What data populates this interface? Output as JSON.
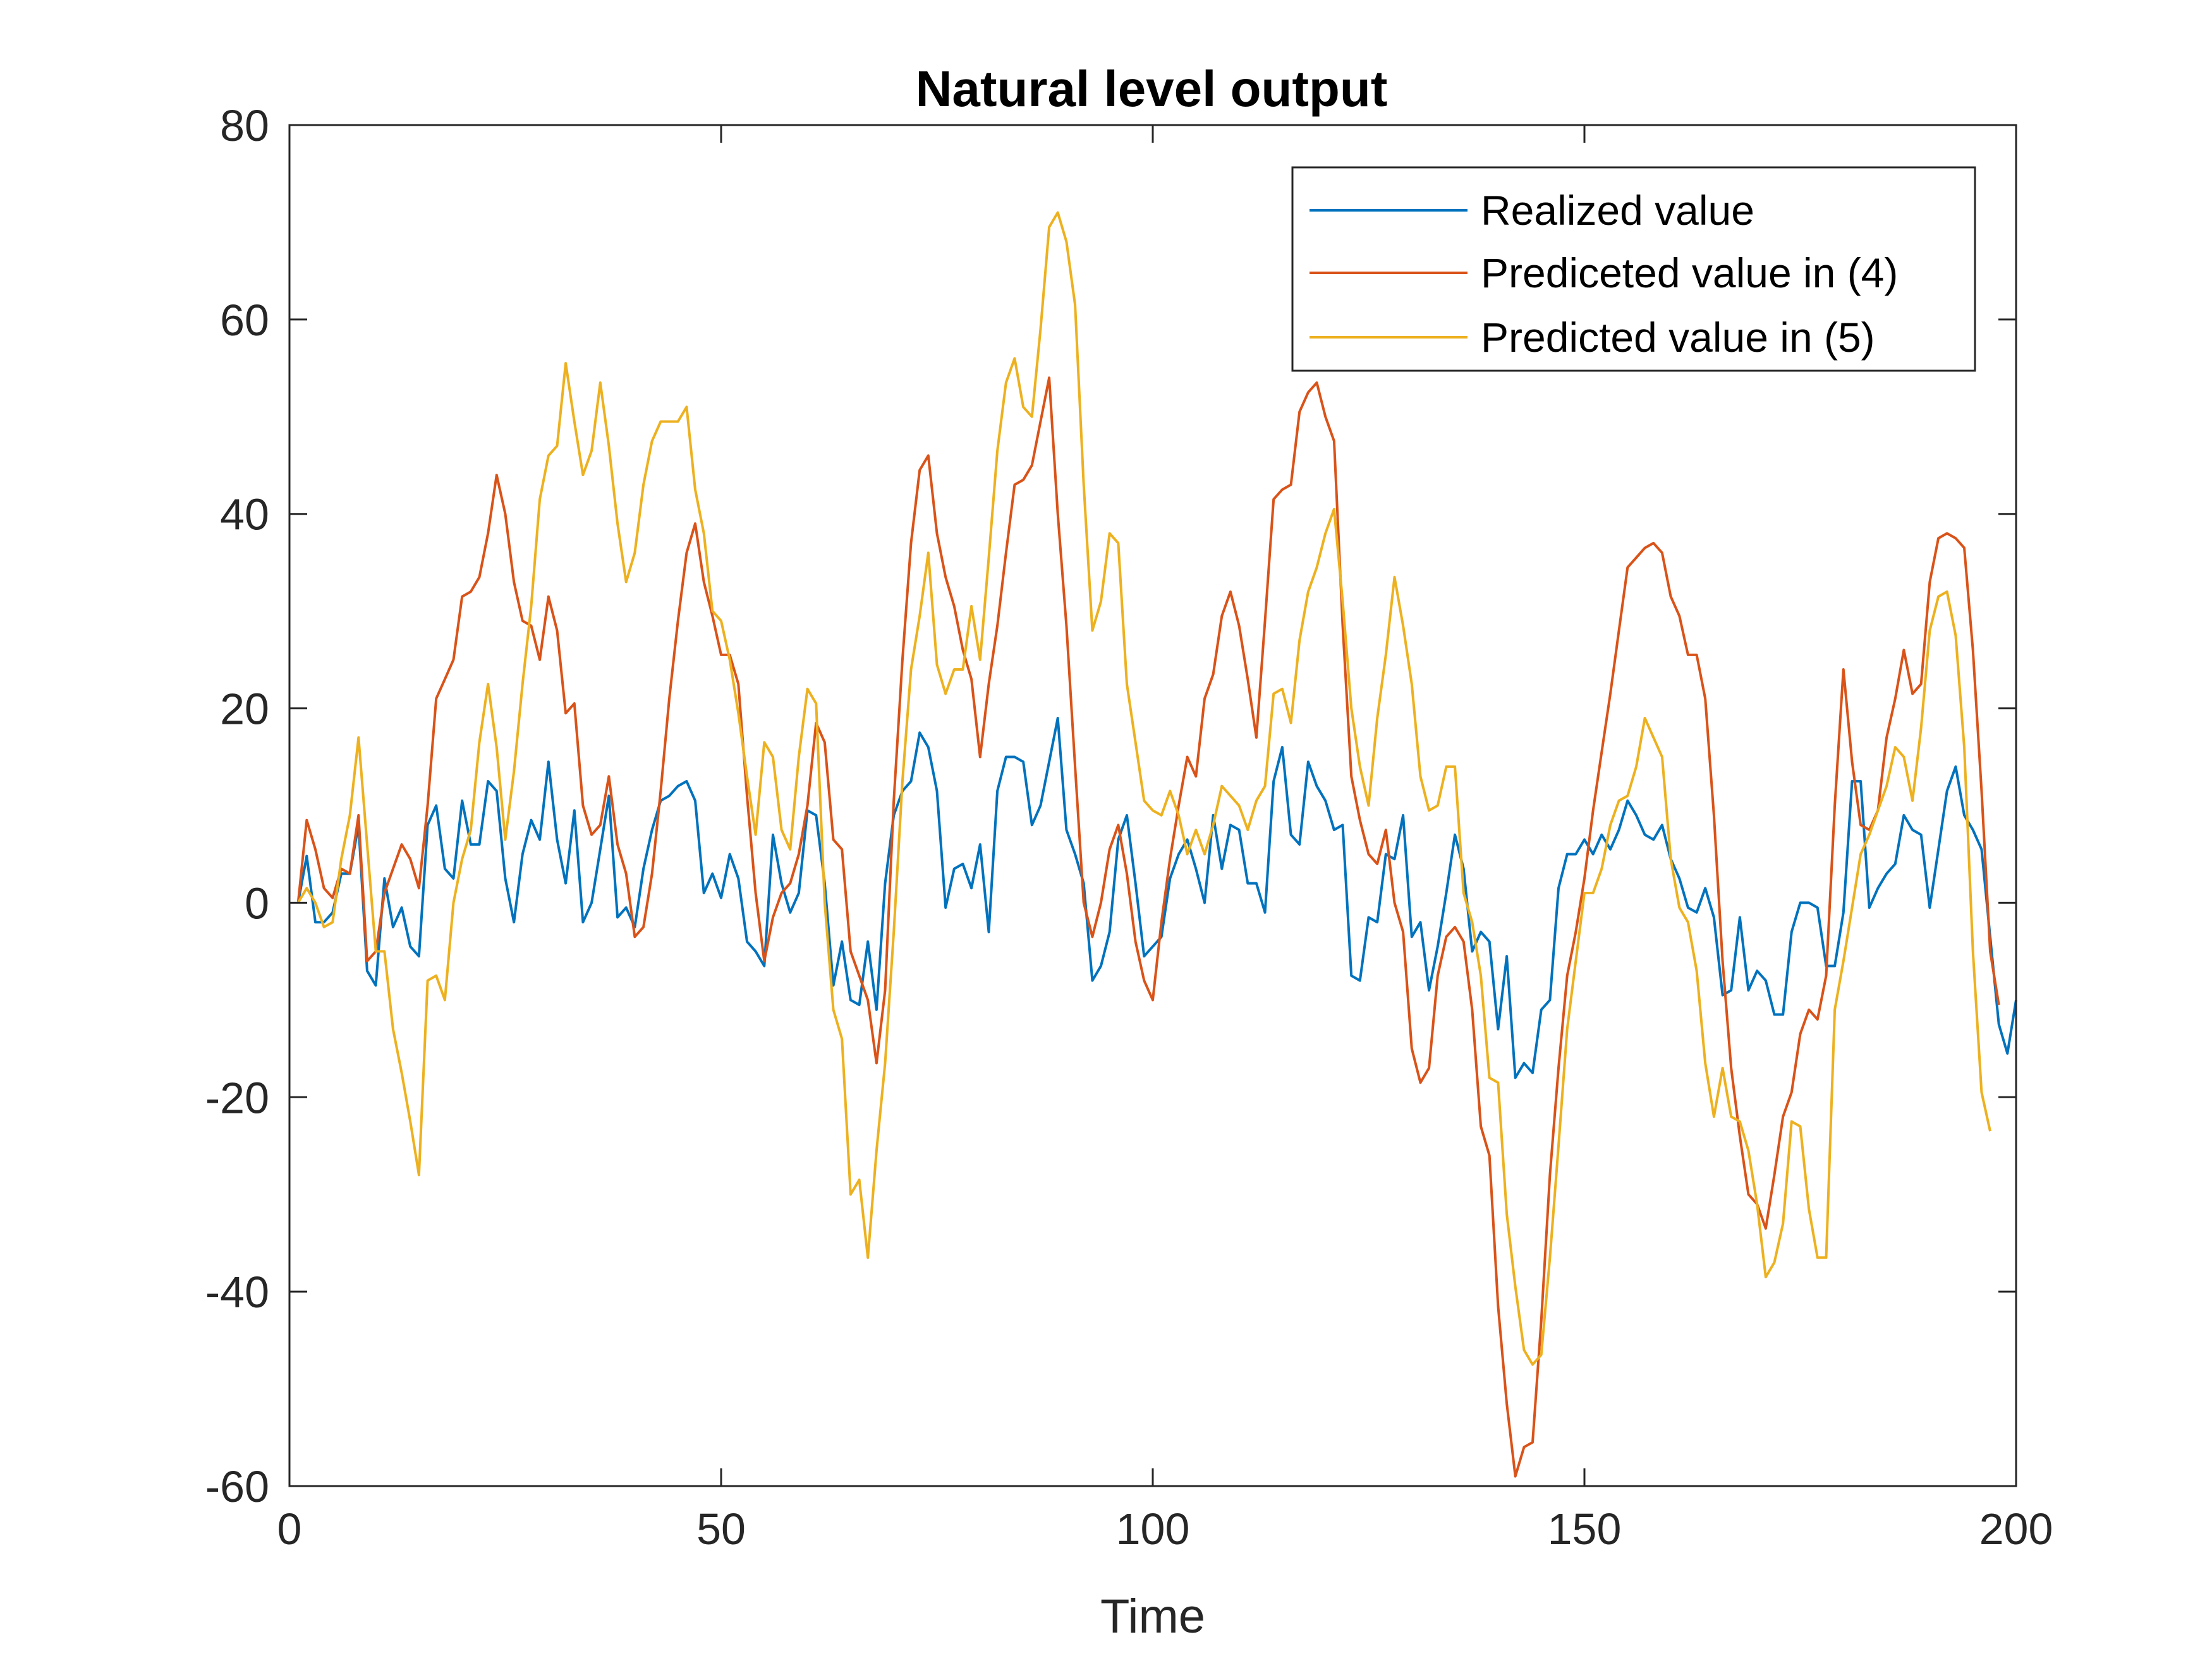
{
  "chart_data": {
    "type": "line",
    "title": "Natural level output",
    "xlabel": "Time",
    "ylabel": "",
    "xlim": [
      0,
      200
    ],
    "ylim": [
      -60,
      80
    ],
    "x_ticks": [
      0,
      50,
      100,
      150,
      200
    ],
    "y_ticks": [
      -60,
      -40,
      -20,
      0,
      20,
      40,
      60,
      80
    ],
    "x_tick_labels": [
      "0",
      "50",
      "100",
      "150",
      "200"
    ],
    "y_tick_labels": [
      "-60",
      "-40",
      "-20",
      "0",
      "20",
      "40",
      "60",
      "80"
    ],
    "grid": false,
    "legend_position": "top-right",
    "x_start": 1,
    "x_step": 1,
    "series": [
      {
        "name": "Realized value",
        "color": "#0072BD",
        "values": [
          0.0,
          4.8,
          -2.0,
          -2.0,
          -1.0,
          3.0,
          3.0,
          8.0,
          -7.0,
          -8.5,
          2.5,
          -2.5,
          -0.5,
          -4.5,
          -5.5,
          8.0,
          10.0,
          3.5,
          2.5,
          10.5,
          6.0,
          6.0,
          12.5,
          11.5,
          2.5,
          -2.0,
          5.0,
          8.5,
          6.5,
          14.5,
          6.5,
          2.0,
          9.5,
          -2.0,
          0.0,
          5.5,
          11.0,
          -1.5,
          -0.5,
          -2.5,
          3.5,
          7.5,
          10.5,
          11.0,
          12.0,
          12.5,
          10.5,
          1.0,
          3.0,
          0.5,
          5.0,
          2.5,
          -4.0,
          -5.0,
          -6.5,
          7.0,
          2.0,
          -1.0,
          1.0,
          9.5,
          9.0,
          2.0,
          -8.5,
          -4.0,
          -10.0,
          -10.5,
          -4.0,
          -11.0,
          2.0,
          9.0,
          11.5,
          12.5,
          17.5,
          16.0,
          11.5,
          -0.5,
          3.5,
          4.0,
          1.5,
          6.0,
          -3.0,
          11.5,
          15.0,
          15.0,
          14.5,
          8.0,
          10.0,
          14.5,
          19.0,
          7.5,
          5.0,
          2.0,
          -8.0,
          -6.5,
          -3.0,
          6.5,
          9.0,
          2.0,
          -5.5,
          -4.5,
          -3.5,
          2.5,
          5.0,
          6.5,
          3.5,
          0.0,
          9.0,
          3.5,
          8.0,
          7.5,
          2.0,
          2.0,
          -1.0,
          12.5,
          16.0,
          7.0,
          6.0,
          14.5,
          12.0,
          10.5,
          7.5,
          8.0,
          -7.5,
          -8.0,
          -1.5,
          -2.0,
          5.0,
          4.5,
          9.0,
          -3.5,
          -2.0,
          -9.0,
          -4.5,
          1.0,
          7.0,
          3.5,
          -5.0,
          -3.0,
          -4.0,
          -13.0,
          -5.5,
          -18.0,
          -16.5,
          -17.5,
          -11.0,
          -10.0,
          1.5,
          5.0,
          5.0,
          6.5,
          5.0,
          7.0,
          5.5,
          7.5,
          10.5,
          9.0,
          7.0,
          6.5,
          8.0,
          4.5,
          2.5,
          -0.5,
          -1.0,
          1.5,
          -1.5,
          -9.5,
          -9.0,
          -1.5,
          -9.0,
          -7.0,
          -8.0,
          -11.5,
          -11.5,
          -3.0,
          0.0,
          0.0,
          -0.5,
          -6.5,
          -6.5,
          -1.0,
          12.5,
          12.5,
          -0.5,
          1.5,
          3.0,
          4.0,
          9.0,
          7.5,
          7.0,
          -0.5,
          5.5,
          11.5,
          14.0,
          9.0,
          7.5,
          5.5,
          -3.5,
          -12.5,
          -15.5,
          -10.0
        ]
      },
      {
        "name": "Prediceted value in (4)",
        "color": "#D95319",
        "values": [
          0.0,
          8.5,
          5.5,
          1.5,
          0.5,
          3.5,
          3.0,
          9.0,
          -6.0,
          -5.0,
          1.0,
          3.5,
          6.0,
          4.5,
          1.5,
          10.0,
          21.0,
          23.0,
          25.0,
          31.5,
          32.0,
          33.5,
          38.0,
          44.0,
          40.0,
          33.0,
          29.0,
          28.5,
          25.0,
          31.5,
          28.0,
          19.5,
          20.5,
          10.0,
          7.0,
          8.0,
          13.0,
          6.0,
          3.0,
          -3.5,
          -2.5,
          3.0,
          11.5,
          21.0,
          29.0,
          36.0,
          39.0,
          33.0,
          29.5,
          25.5,
          25.5,
          22.5,
          11.0,
          1.0,
          -6.0,
          -1.5,
          1.0,
          2.0,
          5.0,
          10.0,
          18.5,
          16.5,
          6.5,
          5.5,
          -5.0,
          -7.5,
          -10.0,
          -16.5,
          -9.0,
          10.5,
          25.0,
          37.0,
          44.5,
          46.0,
          38.0,
          33.5,
          30.5,
          26.0,
          23.0,
          15.0,
          22.5,
          28.5,
          36.0,
          43.0,
          43.5,
          45.0,
          49.5,
          54.0,
          40.0,
          28.5,
          14.0,
          0.0,
          -3.5,
          0.0,
          5.5,
          8.0,
          3.0,
          -4.0,
          -8.0,
          -10.0,
          -2.0,
          4.5,
          10.0,
          15.0,
          13.0,
          21.0,
          23.5,
          29.5,
          32.0,
          28.5,
          23.0,
          17.0,
          29.0,
          41.5,
          42.5,
          43.0,
          50.5,
          52.5,
          53.5,
          50.0,
          47.5,
          28.5,
          13.0,
          8.5,
          5.0,
          4.0,
          7.5,
          0.0,
          -3.0,
          -15.0,
          -18.5,
          -17.0,
          -7.5,
          -3.5,
          -2.5,
          -4.0,
          -11.0,
          -23.0,
          -26.0,
          -41.5,
          -51.5,
          -59.0,
          -56.0,
          -55.5,
          -43.0,
          -28.0,
          -17.0,
          -7.5,
          -3.0,
          2.5,
          9.5,
          15.5,
          21.5,
          28.0,
          34.5,
          35.5,
          36.5,
          37.0,
          36.0,
          31.5,
          29.5,
          25.5,
          25.5,
          21.0,
          9.0,
          -6.0,
          -17.0,
          -24.0,
          -30.0,
          -31.0,
          -33.5,
          -28.0,
          -22.0,
          -19.5,
          -13.5,
          -11.0,
          -12.0,
          -7.5,
          10.0,
          24.0,
          14.5,
          8.0,
          7.5,
          9.5,
          17.0,
          21.0,
          26.0,
          21.5,
          22.5,
          33.0,
          37.5,
          38.0,
          37.5,
          36.5,
          26.0,
          11.5,
          -5.0,
          -10.5
        ]
      },
      {
        "name": "Predicted value in (5)",
        "color": "#EDB120",
        "values": [
          0.0,
          1.5,
          0.0,
          -2.5,
          -2.0,
          4.5,
          9.0,
          17.0,
          6.0,
          -5.0,
          -5.0,
          -13.0,
          -17.5,
          -22.5,
          -28.0,
          -8.0,
          -7.5,
          -10.0,
          0.0,
          4.5,
          7.5,
          16.5,
          22.5,
          16.0,
          6.5,
          13.5,
          22.5,
          30.5,
          41.5,
          46.0,
          47.0,
          55.5,
          49.5,
          44.0,
          46.5,
          53.5,
          47.0,
          39.0,
          33.0,
          36.0,
          43.0,
          47.5,
          49.5,
          49.5,
          49.5,
          51.0,
          42.5,
          38.0,
          30.0,
          29.0,
          25.0,
          19.5,
          13.0,
          7.0,
          16.5,
          15.0,
          7.5,
          5.5,
          15.0,
          22.0,
          20.5,
          0.0,
          -11.0,
          -14.0,
          -30.0,
          -28.5,
          -36.5,
          -25.5,
          -16.5,
          -3.0,
          12.5,
          24.0,
          29.5,
          36.0,
          24.5,
          21.5,
          24.0,
          24.0,
          30.5,
          25.0,
          35.5,
          46.5,
          53.5,
          56.0,
          51.0,
          50.0,
          59.0,
          69.5,
          71.0,
          68.0,
          61.5,
          43.0,
          28.0,
          31.0,
          38.0,
          37.0,
          22.5,
          16.5,
          10.5,
          9.5,
          9.0,
          11.5,
          9.0,
          5.0,
          7.5,
          5.0,
          8.0,
          12.0,
          11.0,
          10.0,
          7.5,
          10.5,
          12.0,
          21.5,
          22.0,
          18.5,
          27.0,
          32.0,
          34.5,
          38.0,
          40.5,
          31.0,
          20.0,
          14.0,
          10.0,
          19.0,
          25.5,
          33.5,
          28.5,
          22.5,
          13.0,
          9.5,
          10.0,
          14.0,
          14.0,
          1.0,
          -2.0,
          -7.5,
          -18.0,
          -18.5,
          -32.0,
          -39.5,
          -46.0,
          -47.5,
          -46.5,
          -36.5,
          -25.0,
          -13.0,
          -6.0,
          1.0,
          1.0,
          3.5,
          8.0,
          10.5,
          11.0,
          14.0,
          19.0,
          17.0,
          15.0,
          4.5,
          -0.5,
          -2.0,
          -7.0,
          -16.5,
          -22.0,
          -17.0,
          -22.0,
          -22.5,
          -25.5,
          -31.0,
          -38.5,
          -37.0,
          -33.0,
          -22.5,
          -23.0,
          -31.5,
          -36.5,
          -36.5,
          -11.0,
          -6.0,
          -0.5,
          5.0,
          7.0,
          9.5,
          12.0,
          16.0,
          15.0,
          10.5,
          18.0,
          28.0,
          31.5,
          32.0,
          27.5,
          16.0,
          -5.0,
          -19.5,
          -23.5
        ]
      }
    ]
  }
}
